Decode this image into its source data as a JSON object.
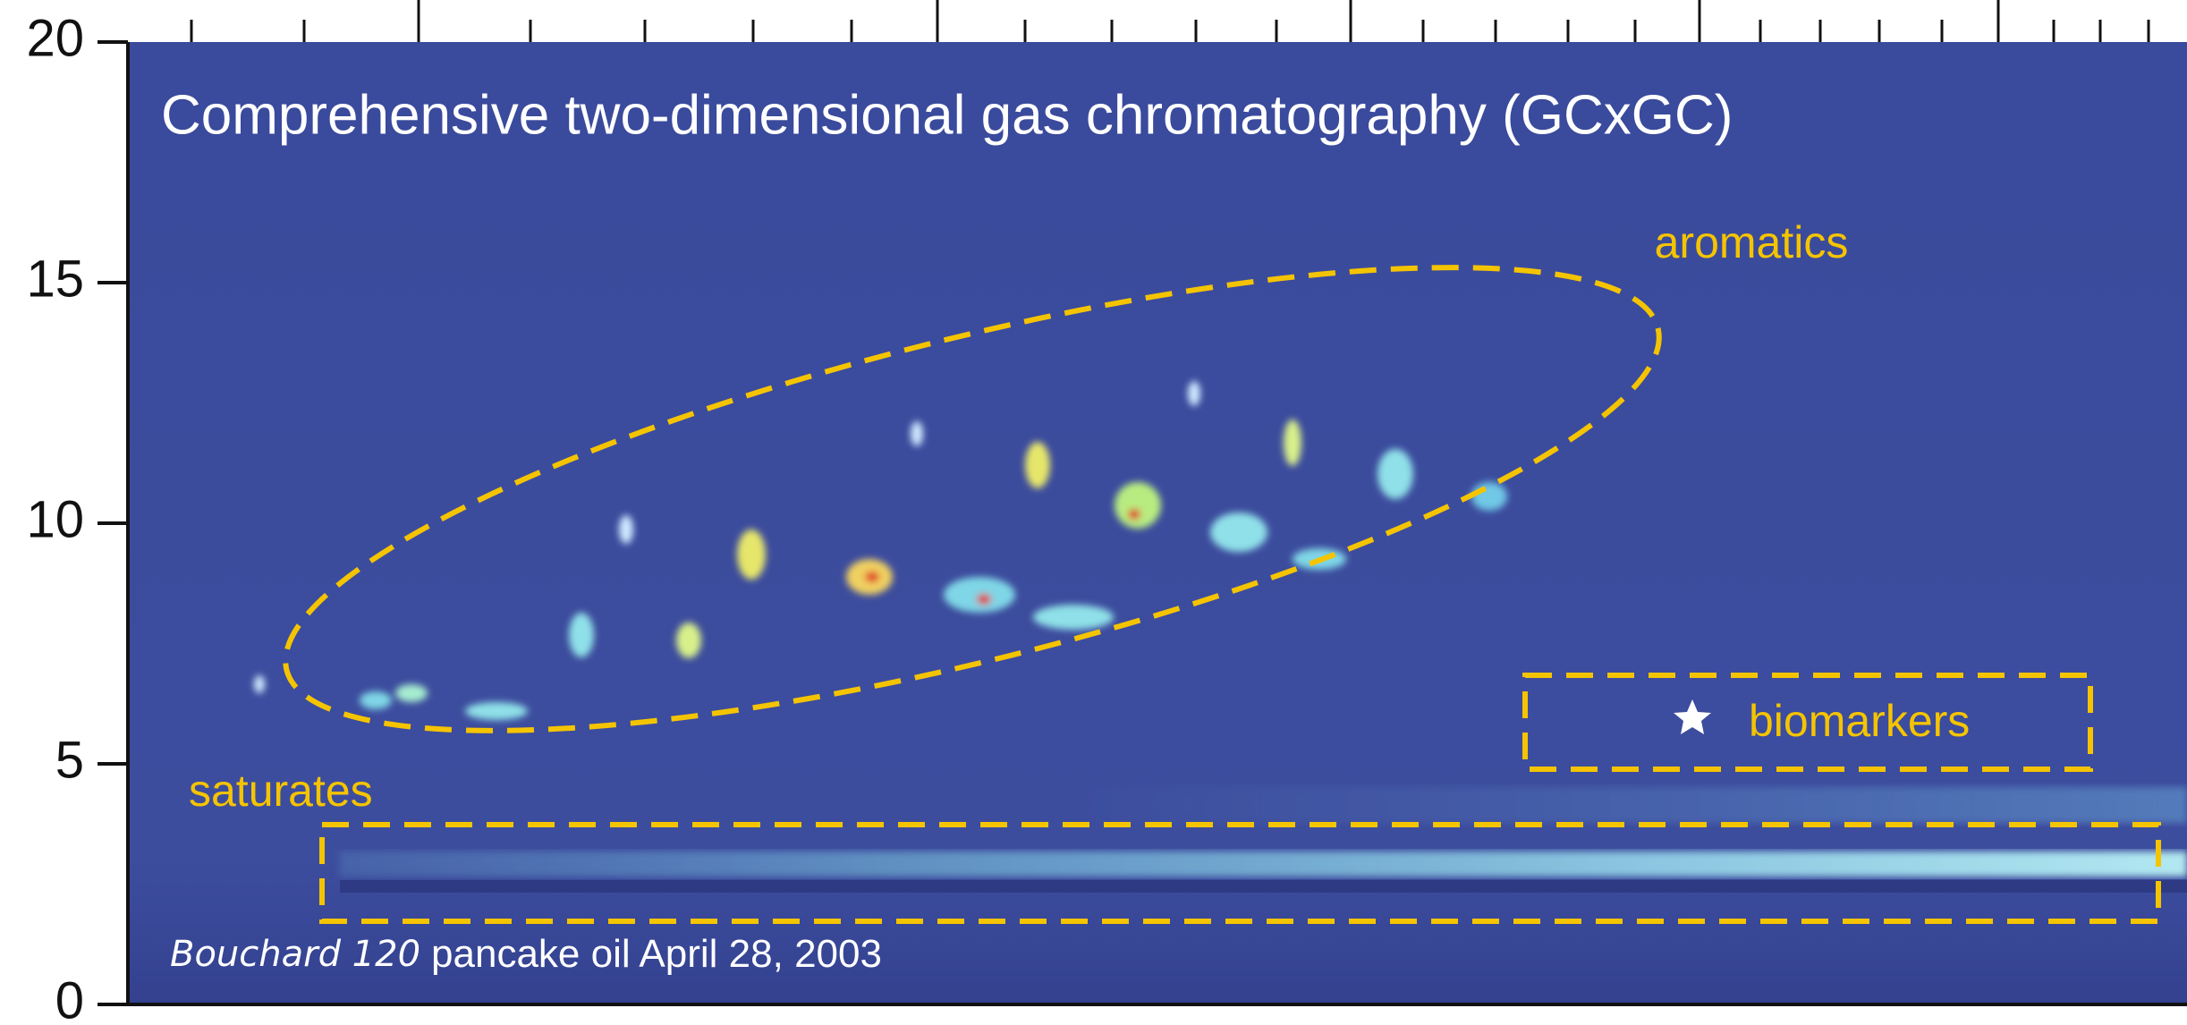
{
  "chart_data": {
    "type": "heatmap",
    "title": "Comprehensive two-dimensional gas chromatography (GCxGC)",
    "ylim": [
      0,
      20
    ],
    "yticks": [
      0,
      5,
      10,
      15,
      20
    ],
    "annotations": [
      "aromatics",
      "biomarkers",
      "saturates"
    ],
    "caption": {
      "italic": "Bouchard 120",
      "text": "pancake oil April 28, 2003"
    }
  }
}
